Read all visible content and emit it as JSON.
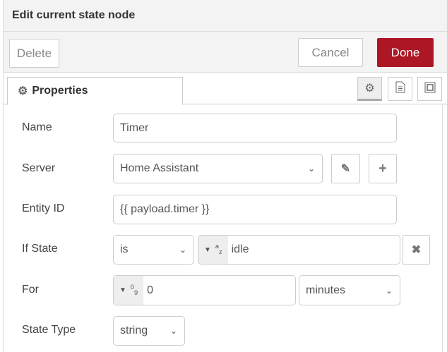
{
  "dialog": {
    "title": "Edit current state node"
  },
  "toolbar": {
    "delete_label": "Delete",
    "cancel_label": "Cancel",
    "done_label": "Done",
    "done_color": "#ad1625"
  },
  "tabs": {
    "properties_label": "Properties",
    "icons": [
      "gear-icon",
      "document-icon",
      "frame-icon"
    ]
  },
  "form": {
    "name": {
      "label": "Name",
      "value": "Timer"
    },
    "server": {
      "label": "Server",
      "value": "Home Assistant"
    },
    "entity_id": {
      "label": "Entity ID",
      "value": "{{ payload.timer }}"
    },
    "if_state": {
      "label": "If State",
      "operator": "is",
      "type_icon": "a-z",
      "value": "idle"
    },
    "for": {
      "label": "For",
      "type_icon": "0-9",
      "value": "0",
      "unit": "minutes"
    },
    "state_type": {
      "label": "State Type",
      "value": "string"
    }
  }
}
